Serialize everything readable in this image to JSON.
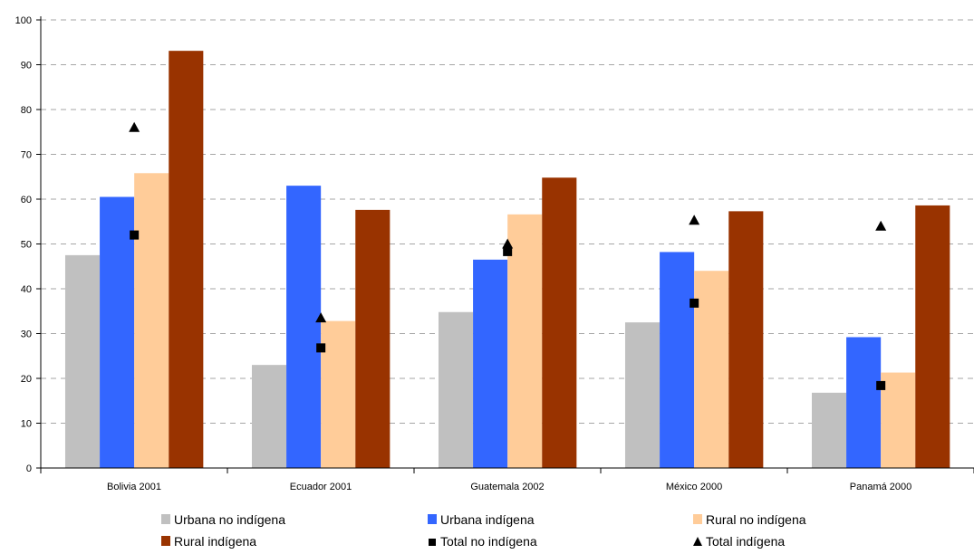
{
  "chart_data": {
    "type": "bar",
    "title": "",
    "xlabel": "",
    "ylabel": "",
    "ylim": [
      0,
      100
    ],
    "yticks": [
      0,
      10,
      20,
      30,
      40,
      50,
      60,
      70,
      80,
      90,
      100
    ],
    "grid": true,
    "legend_position": "bottom",
    "categories": [
      "Bolivia 2001",
      "Ecuador 2001",
      "Guatemala 2002",
      "México 2000",
      "Panamá 2000"
    ],
    "series": [
      {
        "name": "Urbana no indígena",
        "kind": "bar",
        "color": "#c0c0c0",
        "values": [
          47.5,
          23,
          34.8,
          32.5,
          16.8
        ]
      },
      {
        "name": "Urbana indígena",
        "kind": "bar",
        "color": "#3366ff",
        "values": [
          60.5,
          63,
          46.5,
          48.2,
          29.2
        ]
      },
      {
        "name": "Rural no indígena",
        "kind": "bar",
        "color": "#ffcc99",
        "values": [
          65.8,
          32.8,
          56.6,
          44,
          21.3
        ]
      },
      {
        "name": "Rural indígena",
        "kind": "bar",
        "color": "#993300",
        "values": [
          93.1,
          57.6,
          64.8,
          57.3,
          58.6
        ]
      },
      {
        "name": "Total no indígena",
        "kind": "marker",
        "marker": "square",
        "color": "#000000",
        "values": [
          52,
          26.8,
          48.3,
          36.8,
          18.4
        ]
      },
      {
        "name": "Total indígena",
        "kind": "marker",
        "marker": "triangle",
        "color": "#000000",
        "values": [
          76,
          33.5,
          50,
          55.3,
          54
        ]
      }
    ]
  }
}
